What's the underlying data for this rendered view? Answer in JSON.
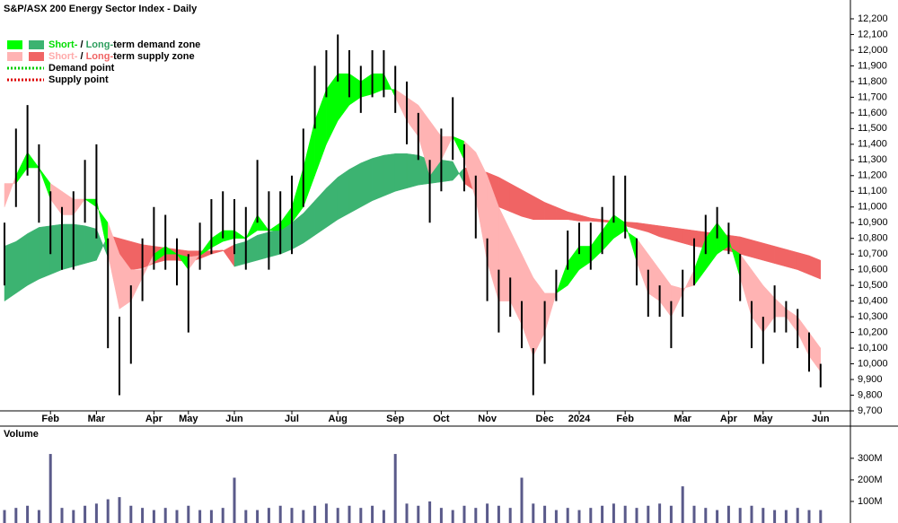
{
  "chart_data": [
    {
      "type": "range-bar",
      "title": "S&P/ASX 200 Energy Sector Index - Daily",
      "categories": [
        null,
        null,
        null,
        null,
        "Feb",
        null,
        null,
        null,
        "Mar",
        null,
        null,
        null,
        null,
        "Apr",
        null,
        null,
        "May",
        null,
        null,
        null,
        "Jun",
        null,
        null,
        null,
        null,
        "Jul",
        null,
        null,
        null,
        "Aug",
        null,
        null,
        null,
        null,
        "Sep",
        null,
        null,
        null,
        "Oct",
        null,
        null,
        null,
        "Nov",
        null,
        null,
        null,
        null,
        "Dec",
        null,
        null,
        "2024",
        null,
        null,
        null,
        "Feb",
        null,
        null,
        null,
        null,
        "Mar",
        null,
        null,
        null,
        "Apr",
        null,
        null,
        "May",
        null,
        null,
        null,
        null,
        "Jun"
      ],
      "high": [
        10900,
        11500,
        11650,
        11400,
        11100,
        11000,
        11100,
        11300,
        11400,
        10800,
        10300,
        10500,
        10800,
        11000,
        10950,
        10800,
        10700,
        10900,
        11050,
        11100,
        11050,
        11000,
        11300,
        11100,
        11100,
        11200,
        11500,
        11900,
        12000,
        12100,
        12000,
        11900,
        12000,
        12000,
        11900,
        11800,
        11600,
        11300,
        11500,
        11700,
        11400,
        11200,
        10800,
        10600,
        10550,
        10400,
        10100,
        10400,
        10600,
        10850,
        10900,
        10900,
        11000,
        11200,
        11200,
        10800,
        10600,
        10500,
        10400,
        10600,
        10800,
        10950,
        11000,
        10900,
        10700,
        10400,
        10300,
        10500,
        10400,
        10350,
        10200,
        10000
      ],
      "low": [
        10500,
        11000,
        11200,
        10900,
        10700,
        10600,
        10600,
        10900,
        10800,
        10100,
        9800,
        10000,
        10400,
        10600,
        10600,
        10500,
        10200,
        10600,
        10700,
        10800,
        10700,
        10600,
        10900,
        10600,
        10700,
        10700,
        11000,
        11500,
        11700,
        11800,
        11700,
        11600,
        11700,
        11700,
        11600,
        11400,
        11300,
        10900,
        11100,
        11300,
        11100,
        10800,
        10400,
        10200,
        10300,
        10100,
        9800,
        10000,
        10400,
        10600,
        10700,
        10600,
        10700,
        10900,
        10800,
        10500,
        10300,
        10300,
        10100,
        10300,
        10500,
        10700,
        10800,
        10700,
        10400,
        10100,
        10000,
        10200,
        10200,
        10100,
        9950,
        9850
      ],
      "bar_color": "#000000",
      "zones": {
        "long": {
          "fast": [
            10750,
            10780,
            10830,
            10870,
            10880,
            10890,
            10890,
            10880,
            10860,
            10680,
            10620,
            10600,
            10610,
            10640,
            10660,
            10660,
            10650,
            10670,
            10700,
            10720,
            10760,
            10780,
            10820,
            10840,
            10860,
            10900,
            10960,
            11040,
            11120,
            11190,
            11240,
            11280,
            11310,
            11330,
            11340,
            11340,
            11330,
            11300,
            11300,
            11290,
            11150,
            11100,
            11050,
            11000,
            10970,
            10940,
            10920,
            10920,
            10920,
            10920,
            10910,
            10910,
            10905,
            10900,
            10880,
            10860,
            10840,
            10810,
            10790,
            10770,
            10750,
            10740,
            10730,
            10720,
            10700,
            10680,
            10660,
            10640,
            10620,
            10600,
            10570,
            10540
          ],
          "slow": [
            10400,
            10450,
            10500,
            10540,
            10570,
            10600,
            10620,
            10640,
            10660,
            10820,
            10800,
            10780,
            10760,
            10750,
            10740,
            10730,
            10720,
            10720,
            10720,
            10725,
            10620,
            10640,
            10660,
            10680,
            10700,
            10730,
            10770,
            10820,
            10870,
            10920,
            10960,
            11000,
            11040,
            11070,
            11100,
            11120,
            11140,
            11150,
            11160,
            11170,
            11250,
            11240,
            11220,
            11190,
            11150,
            11110,
            11070,
            11030,
            11000,
            10970,
            10950,
            10930,
            10920,
            10910,
            10905,
            10900,
            10890,
            10880,
            10870,
            10860,
            10850,
            10840,
            10830,
            10820,
            10810,
            10790,
            10770,
            10750,
            10730,
            10710,
            10690,
            10660
          ],
          "demand_color": "#3cb371",
          "supply_color": "#f06464"
        },
        "short": {
          "fast": [
            11000,
            11200,
            11350,
            11250,
            11050,
            10950,
            10950,
            11050,
            11050,
            10700,
            10350,
            10400,
            10550,
            10700,
            10750,
            10700,
            10600,
            10700,
            10800,
            10850,
            10850,
            10800,
            10950,
            10850,
            10900,
            11000,
            11250,
            11550,
            11750,
            11850,
            11850,
            11800,
            11850,
            11850,
            11700,
            11550,
            11450,
            11200,
            11300,
            11450,
            11300,
            11050,
            10650,
            10400,
            10400,
            10250,
            10050,
            10200,
            10450,
            10650,
            10750,
            10750,
            10850,
            10950,
            10900,
            10650,
            10450,
            10400,
            10300,
            10450,
            10600,
            10800,
            10900,
            10800,
            10550,
            10300,
            10200,
            10300,
            10300,
            10200,
            10050,
            9950
          ],
          "slow": [
            11150,
            11150,
            11250,
            11250,
            11150,
            11100,
            11050,
            11050,
            11000,
            10900,
            10700,
            10600,
            10600,
            10650,
            10700,
            10700,
            10680,
            10690,
            10740,
            10780,
            10800,
            10800,
            10850,
            10850,
            10850,
            10900,
            11000,
            11200,
            11400,
            11550,
            11650,
            11700,
            11720,
            11750,
            11750,
            11700,
            11650,
            11550,
            11450,
            11450,
            11420,
            11350,
            11200,
            11000,
            10850,
            10700,
            10550,
            10450,
            10450,
            10500,
            10600,
            10650,
            10720,
            10800,
            10850,
            10800,
            10700,
            10600,
            10500,
            10480,
            10500,
            10600,
            10700,
            10750,
            10700,
            10600,
            10500,
            10420,
            10350,
            10300,
            10200,
            10100
          ],
          "demand_color": "#00ff00",
          "supply_color": "#ffb3b3"
        }
      },
      "legend": [
        {
          "swatch": "box",
          "zone_state": "demand",
          "parts": [
            {
              "text": "Short-",
              "color": "#00dd00"
            },
            {
              "text": " / ",
              "color": "#000000"
            },
            {
              "text": "Long-",
              "color": "#2e9e5e"
            },
            {
              "text": "term demand zone",
              "color": "#000000"
            }
          ]
        },
        {
          "swatch": "box",
          "zone_state": "supply",
          "parts": [
            {
              "text": "Short-",
              "color": "#ffaaaa"
            },
            {
              "text": " / ",
              "color": "#000000"
            },
            {
              "text": "Long-",
              "color": "#f06464"
            },
            {
              "text": "term supply zone",
              "color": "#000000"
            }
          ]
        },
        {
          "swatch": "dots",
          "swatch_color": "#00cc00",
          "parts": [
            {
              "text": "Demand point",
              "color": "#000000"
            }
          ]
        },
        {
          "swatch": "dots",
          "swatch_color": "#dd0000",
          "parts": [
            {
              "text": "Supply point",
              "color": "#000000"
            }
          ]
        }
      ],
      "ylim": [
        9700,
        12320
      ],
      "yticks": [
        {
          "value": 9700,
          "label": "9,700"
        },
        {
          "value": 9800,
          "label": "9,800"
        },
        {
          "value": 9900,
          "label": "9,900"
        },
        {
          "value": 10000,
          "label": "10,000"
        },
        {
          "value": 10100,
          "label": "10,100"
        },
        {
          "value": 10200,
          "label": "10,200"
        },
        {
          "value": 10300,
          "label": "10,300"
        },
        {
          "value": 10400,
          "label": "10,400"
        },
        {
          "value": 10500,
          "label": "10,500"
        },
        {
          "value": 10600,
          "label": "10,600"
        },
        {
          "value": 10700,
          "label": "10,700"
        },
        {
          "value": 10800,
          "label": "10,800"
        },
        {
          "value": 10900,
          "label": "10,900"
        },
        {
          "value": 11000,
          "label": "11,000"
        },
        {
          "value": 11100,
          "label": "11,100"
        },
        {
          "value": 11200,
          "label": "11,200"
        },
        {
          "value": 11300,
          "label": "11,300"
        },
        {
          "value": 11400,
          "label": "11,400"
        },
        {
          "value": 11500,
          "label": "11,500"
        },
        {
          "value": 11600,
          "label": "11,600"
        },
        {
          "value": 11700,
          "label": "11,700"
        },
        {
          "value": 11800,
          "label": "11,800"
        },
        {
          "value": 11900,
          "label": "11,900"
        },
        {
          "value": 12000,
          "label": "12,000"
        },
        {
          "value": 12100,
          "label": "12,100"
        },
        {
          "value": 12200,
          "label": "12,200"
        }
      ],
      "grid": false
    },
    {
      "type": "bar",
      "title": "Volume",
      "title_color": "#4b0082",
      "color": "#5a5a8a",
      "values": [
        60,
        70,
        80,
        60,
        320,
        70,
        60,
        80,
        90,
        110,
        120,
        80,
        70,
        60,
        70,
        60,
        80,
        60,
        60,
        70,
        210,
        60,
        60,
        70,
        80,
        70,
        60,
        80,
        90,
        70,
        80,
        70,
        80,
        60,
        320,
        90,
        80,
        100,
        70,
        60,
        80,
        70,
        90,
        80,
        70,
        210,
        90,
        80,
        60,
        70,
        60,
        70,
        80,
        90,
        80,
        70,
        80,
        90,
        80,
        170,
        80,
        70,
        60,
        80,
        70,
        80,
        70,
        60,
        60,
        70,
        60,
        60
      ],
      "ylim": [
        0,
        445
      ],
      "yticks": [
        {
          "value": 100,
          "label": "100M"
        },
        {
          "value": 200,
          "label": "200M"
        },
        {
          "value": 300,
          "label": "300M"
        }
      ]
    }
  ]
}
